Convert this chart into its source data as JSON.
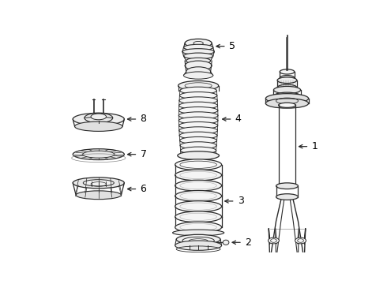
{
  "background_color": "#ffffff",
  "line_color": "#2a2a2a",
  "label_color": "#000000",
  "fig_w": 4.9,
  "fig_h": 3.6,
  "dpi": 100
}
